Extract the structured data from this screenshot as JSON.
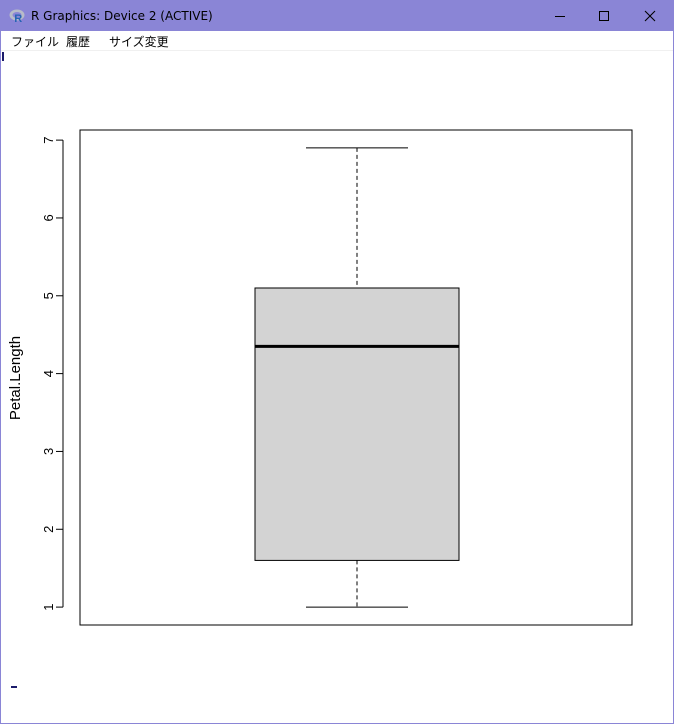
{
  "window": {
    "title": "R Graphics: Device 2 (ACTIVE)",
    "icon": "r-logo-icon",
    "controls": [
      "minimize-icon",
      "maximize-icon",
      "close-icon"
    ]
  },
  "menu": {
    "items": [
      "ファイル",
      "履歴",
      "サイズ変更"
    ]
  },
  "chart_data": {
    "type": "boxplot",
    "ylabel": "Petal.Length",
    "ylim": [
      0.77,
      7.13
    ],
    "yticks": [
      "1",
      "2",
      "3",
      "4",
      "5",
      "6",
      "7"
    ],
    "box": {
      "min": 1.0,
      "q1": 1.6,
      "median": 4.35,
      "q3": 5.1,
      "max": 6.9
    },
    "box_fill": "#d3d3d3",
    "grid": false
  }
}
